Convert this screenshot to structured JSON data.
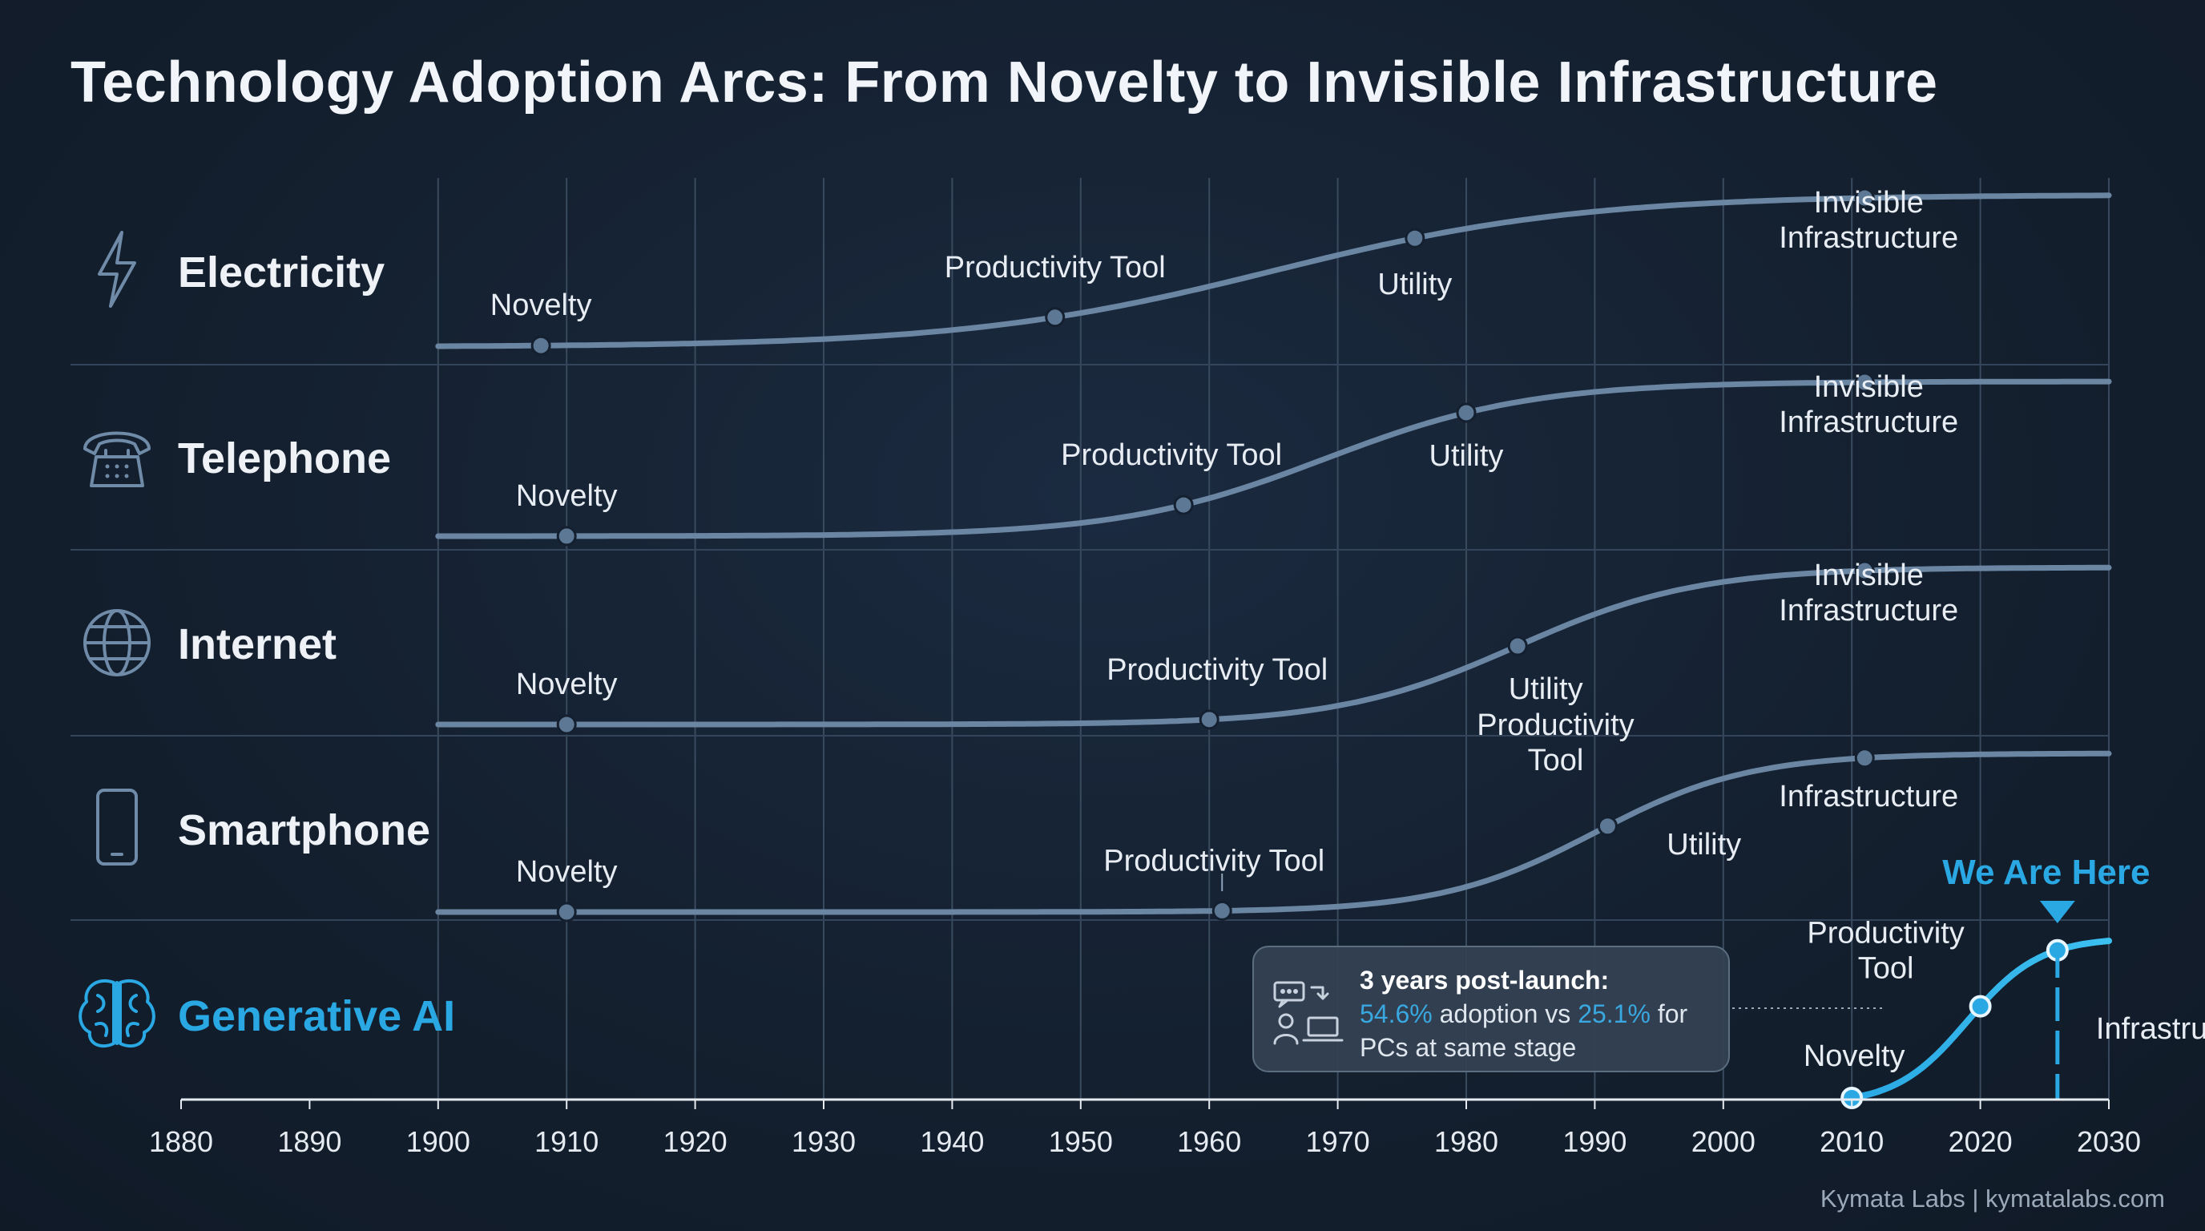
{
  "title": "Technology Adoption Arcs: From Novelty to Invisible Infrastructure",
  "footer": "Kymata Labs | kymatalabs.com",
  "colors": {
    "background": "#14202f",
    "curve": "#6b86a3",
    "marker": "#5d7895",
    "grid": "#3a4a5e",
    "accent": "#2aa8e4",
    "text": "#e8edf3"
  },
  "callout": {
    "icon": "people-laptop-chat-icon",
    "heading": "3 years post-launch:",
    "line2_value_a": "54.6%",
    "line2_mid": " adoption vs ",
    "line2_value_b": "25.1%",
    "line2_end": " for",
    "line3": "PCs at same stage"
  },
  "chart_data": {
    "type": "line",
    "title": "Technology Adoption Arcs: From Novelty to Invisible Infrastructure",
    "xlabel": "",
    "ylabel": "",
    "xlim": [
      1880,
      2030
    ],
    "ylim": [
      0,
      1
    ],
    "x_ticks": [
      1880,
      1890,
      1900,
      1910,
      1920,
      1930,
      1940,
      1950,
      1960,
      1970,
      1980,
      1990,
      2000,
      2010,
      2020,
      2030
    ],
    "grid": true,
    "series": [
      {
        "name": "Electricity",
        "icon": "lightning-bolt-icon",
        "highlight": false,
        "start": 1900,
        "mid": 1965,
        "width": 12,
        "points": [
          {
            "label": "Novelty",
            "x": 1908
          },
          {
            "label": "Productivity Tool",
            "x": 1948
          },
          {
            "label": "Utility",
            "x": 1976
          },
          {
            "label": "Invisible\nInfrastructure",
            "x": 2011
          }
        ]
      },
      {
        "name": "Telephone",
        "icon": "telephone-icon",
        "highlight": false,
        "start": 1900,
        "mid": 1969,
        "width": 8,
        "points": [
          {
            "label": "Novelty",
            "x": 1910
          },
          {
            "label": "Productivity Tool",
            "x": 1958
          },
          {
            "label": "Utility",
            "x": 1980
          },
          {
            "label": "Invisible\nInfrastructure",
            "x": 2011
          }
        ]
      },
      {
        "name": "Internet",
        "icon": "globe-icon",
        "highlight": false,
        "start": 1900,
        "mid": 1984,
        "width": 7,
        "points": [
          {
            "label": "Novelty",
            "x": 1910
          },
          {
            "label": "Productivity Tool",
            "x": 1960
          },
          {
            "label": "Utility",
            "x": 1984
          },
          {
            "label": "Invisible\nInfrastructure",
            "x": 2011
          }
        ]
      },
      {
        "name": "Smartphone",
        "icon": "smartphone-icon",
        "highlight": false,
        "start": 1900,
        "mid": 1990,
        "width": 6,
        "points": [
          {
            "label": "Novelty",
            "x": 1910
          },
          {
            "label": "Productivity Tool",
            "x": 1961
          },
          {
            "label": "Productivity\nTool",
            "x": 1991
          },
          {
            "label": "Utility",
            "x": null
          },
          {
            "label": "Infrastructure",
            "x": 2011
          }
        ]
      },
      {
        "name": "Generative AI",
        "icon": "brain-icon",
        "highlight": true,
        "start": 2010,
        "mid": 2019,
        "width": 2.8,
        "points": [
          {
            "label": "Novelty",
            "x": 2010
          },
          {
            "label": "Productivity\nTool",
            "x": 2020
          },
          {
            "label": "Infrastructure",
            "x": 2026
          }
        ]
      }
    ],
    "annotations": [
      {
        "text": "We Are Here",
        "x": 2026,
        "series": "Generative AI"
      }
    ]
  }
}
